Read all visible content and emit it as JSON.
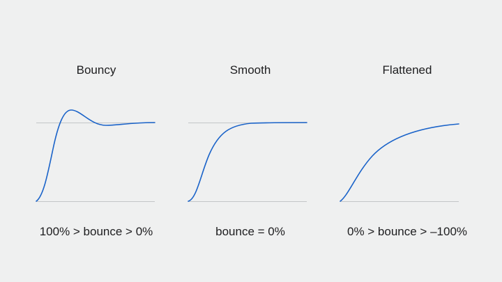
{
  "colors": {
    "background": "#eff0f0",
    "curve": "#1a63c9",
    "guide": "#c3c5c7",
    "text": "#1d1d1f"
  },
  "panels": [
    {
      "title": "Bouncy",
      "caption": "100% > bounce > 0%",
      "behavior": "overshoot-then-settle"
    },
    {
      "title": "Smooth",
      "caption": "bounce = 0%",
      "behavior": "critically-damped"
    },
    {
      "title": "Flattened",
      "caption": "0% > bounce > –100%",
      "behavior": "gradual-approach"
    }
  ]
}
